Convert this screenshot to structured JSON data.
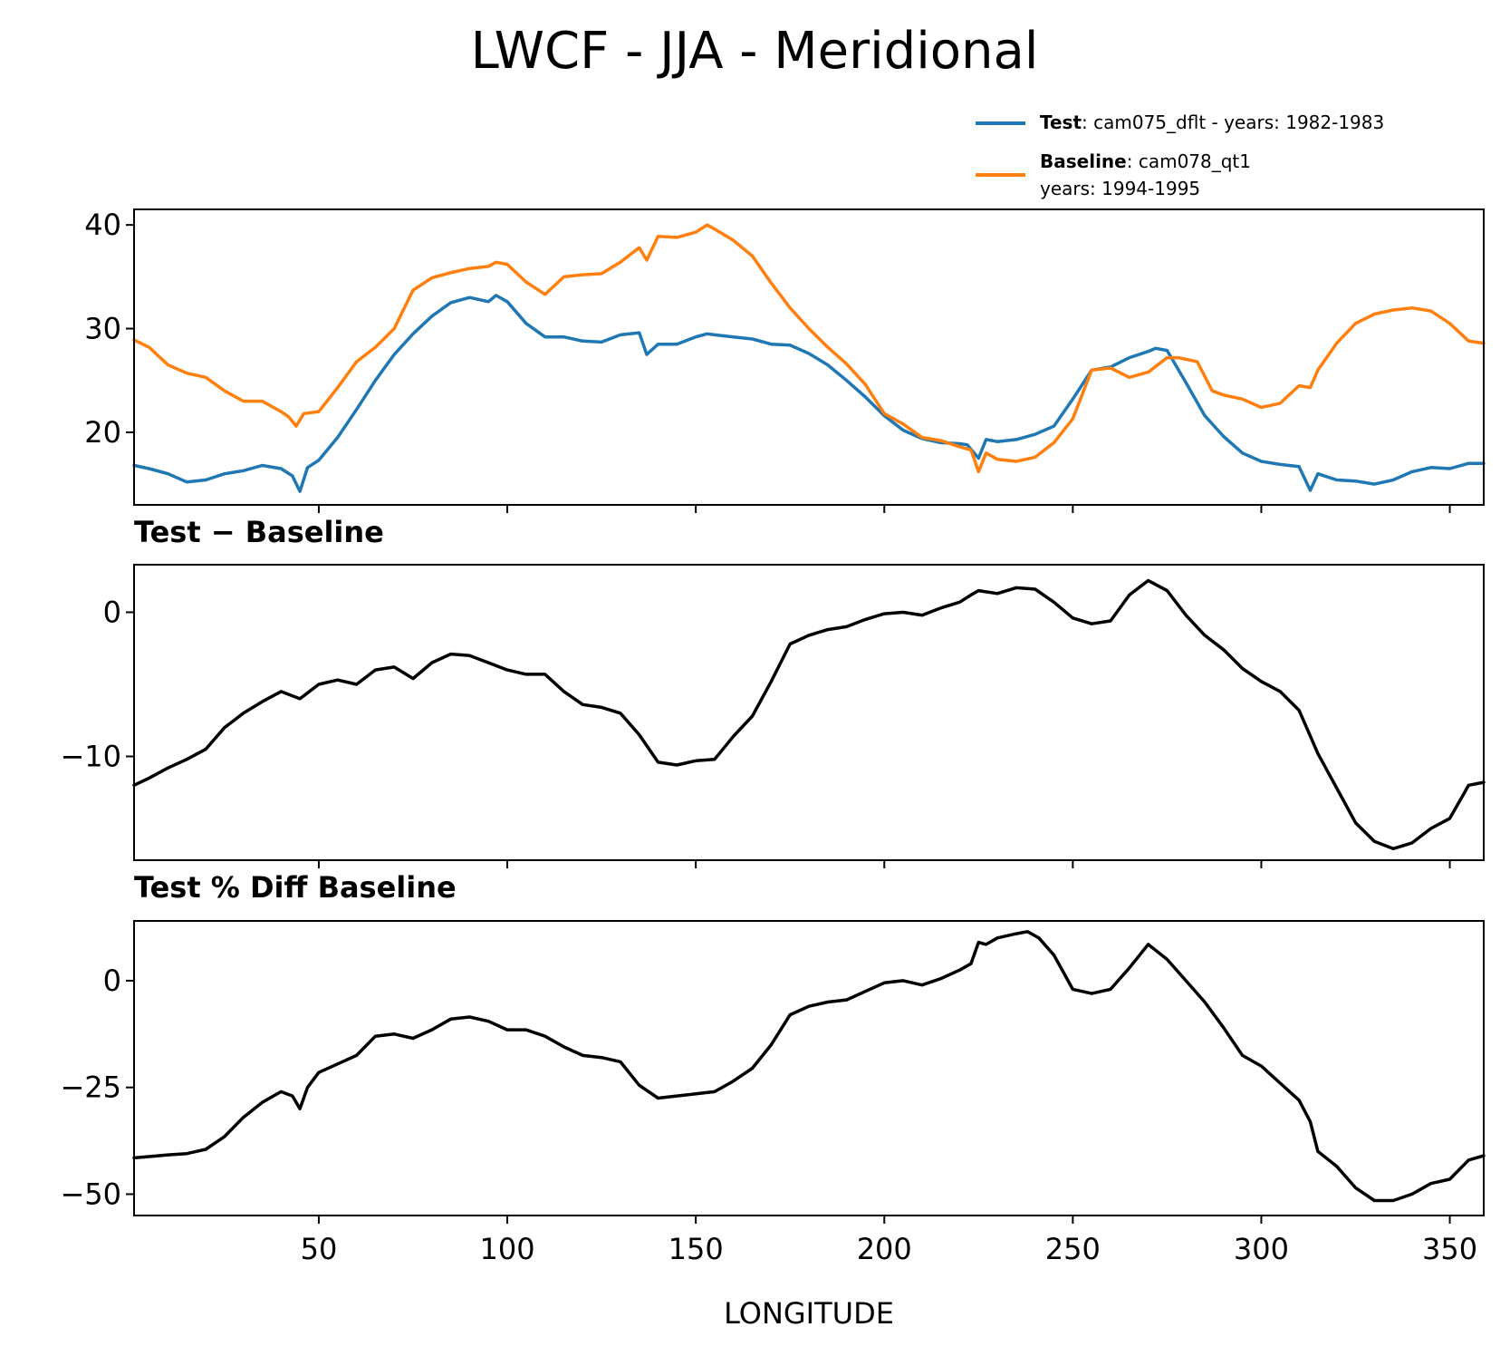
{
  "chart_data": {
    "title": "LWCF - JJA - Meridional",
    "xlabel": "LONGITUDE",
    "xlim": [
      1,
      359
    ],
    "xticks": [
      50,
      100,
      150,
      200,
      250,
      300,
      350
    ],
    "xtick_labels": [
      "50",
      "100",
      "150",
      "200",
      "250",
      "300",
      "350"
    ],
    "legend": {
      "placement": "above top panel, right",
      "entries": [
        {
          "bold": "Test",
          "text": ": cam075_dflt - years: 1982-1983",
          "text2": "",
          "color": "#1f77b4"
        },
        {
          "bold": "Baseline",
          "text": ": cam078_qt1",
          "text2": "years: 1994-1995",
          "color": "#ff7f0e"
        }
      ]
    },
    "panels": [
      {
        "type": "line",
        "subtitle": "",
        "ylim": [
          13,
          41.5
        ],
        "yticks": [
          20,
          30,
          40
        ],
        "ytick_labels": [
          "20",
          "30",
          "40"
        ],
        "series": [
          {
            "name": "Test",
            "color": "#1f77b4",
            "x": [
              1,
              5,
              10,
              15,
              20,
              25,
              30,
              35,
              40,
              43,
              45,
              47,
              50,
              55,
              60,
              65,
              70,
              75,
              80,
              85,
              90,
              95,
              97,
              100,
              105,
              110,
              115,
              120,
              125,
              130,
              135,
              137,
              140,
              145,
              150,
              153,
              155,
              160,
              165,
              170,
              175,
              180,
              185,
              190,
              195,
              200,
              205,
              210,
              215,
              220,
              222,
              225,
              227,
              230,
              235,
              240,
              245,
              250,
              255,
              260,
              265,
              270,
              272,
              275,
              280,
              285,
              290,
              295,
              300,
              305,
              310,
              313,
              315,
              320,
              325,
              330,
              335,
              340,
              345,
              350,
              355,
              359
            ],
            "y": [
              16.8,
              16.5,
              16.0,
              15.2,
              15.4,
              16.0,
              16.3,
              16.8,
              16.5,
              15.8,
              14.3,
              16.6,
              17.3,
              19.5,
              22.2,
              25.0,
              27.5,
              29.5,
              31.2,
              32.5,
              33.0,
              32.6,
              33.2,
              32.6,
              30.5,
              29.2,
              29.2,
              28.8,
              28.7,
              29.4,
              29.6,
              27.5,
              28.5,
              28.5,
              29.2,
              29.5,
              29.4,
              29.2,
              29.0,
              28.5,
              28.4,
              27.6,
              26.5,
              25.0,
              23.4,
              21.6,
              20.2,
              19.4,
              19.0,
              18.9,
              18.8,
              17.5,
              19.3,
              19.1,
              19.3,
              19.8,
              20.6,
              23.2,
              26.0,
              26.3,
              27.2,
              27.8,
              28.1,
              27.9,
              24.8,
              21.6,
              19.6,
              18.0,
              17.2,
              16.9,
              16.7,
              14.4,
              16.0,
              15.4,
              15.3,
              15.0,
              15.4,
              16.2,
              16.6,
              16.5,
              17.0,
              17.0
            ]
          },
          {
            "name": "Baseline",
            "color": "#ff7f0e",
            "x": [
              1,
              5,
              10,
              15,
              20,
              25,
              30,
              35,
              40,
              42,
              44,
              46,
              50,
              55,
              60,
              65,
              70,
              75,
              80,
              85,
              90,
              95,
              97,
              100,
              105,
              110,
              115,
              120,
              125,
              130,
              135,
              137,
              140,
              145,
              150,
              153,
              155,
              160,
              165,
              170,
              175,
              180,
              185,
              190,
              195,
              200,
              205,
              210,
              215,
              220,
              223,
              225,
              227,
              230,
              235,
              240,
              245,
              250,
              255,
              260,
              265,
              270,
              275,
              278,
              283,
              287,
              290,
              295,
              300,
              305,
              310,
              313,
              315,
              320,
              325,
              330,
              335,
              340,
              345,
              350,
              355,
              359
            ],
            "y": [
              28.9,
              28.2,
              26.5,
              25.7,
              25.3,
              24.0,
              23.0,
              23.0,
              22.0,
              21.5,
              20.6,
              21.8,
              22.0,
              24.3,
              26.8,
              28.2,
              30.0,
              33.7,
              34.9,
              35.4,
              35.8,
              36.0,
              36.4,
              36.2,
              34.5,
              33.3,
              35.0,
              35.2,
              35.3,
              36.4,
              37.8,
              36.6,
              38.9,
              38.8,
              39.3,
              40.0,
              39.6,
              38.5,
              37.0,
              34.4,
              32.0,
              30.0,
              28.2,
              26.6,
              24.6,
              21.8,
              20.8,
              19.5,
              19.2,
              18.6,
              18.3,
              16.2,
              18.0,
              17.4,
              17.2,
              17.6,
              19.0,
              21.3,
              26.0,
              26.2,
              25.3,
              25.8,
              27.2,
              27.2,
              26.8,
              24.0,
              23.6,
              23.2,
              22.4,
              22.8,
              24.5,
              24.3,
              26.0,
              28.6,
              30.5,
              31.4,
              31.8,
              32.0,
              31.7,
              30.5,
              28.8,
              28.6
            ]
          }
        ]
      },
      {
        "type": "line",
        "subtitle": "Test − Baseline",
        "ylim": [
          -17.2,
          3.3
        ],
        "yticks": [
          -10,
          0
        ],
        "ytick_labels": [
          "−10",
          "0"
        ],
        "series": [
          {
            "name": "",
            "color": "#000000",
            "x": [
              1,
              5,
              10,
              15,
              20,
              25,
              30,
              35,
              40,
              45,
              50,
              55,
              60,
              65,
              70,
              75,
              80,
              85,
              90,
              95,
              100,
              105,
              110,
              115,
              120,
              125,
              130,
              135,
              140,
              145,
              150,
              155,
              160,
              165,
              170,
              175,
              180,
              185,
              190,
              195,
              200,
              205,
              210,
              215,
              220,
              223,
              225,
              230,
              235,
              240,
              245,
              250,
              255,
              260,
              265,
              270,
              275,
              280,
              285,
              290,
              295,
              300,
              305,
              310,
              315,
              320,
              325,
              330,
              335,
              340,
              345,
              350,
              355,
              359
            ],
            "y": [
              -12.0,
              -11.5,
              -10.8,
              -10.2,
              -9.5,
              -8.0,
              -7.0,
              -6.2,
              -5.5,
              -6.0,
              -5.0,
              -4.7,
              -5.0,
              -4.0,
              -3.8,
              -4.6,
              -3.5,
              -2.9,
              -3.0,
              -3.5,
              -4.0,
              -4.3,
              -4.3,
              -5.5,
              -6.4,
              -6.6,
              -7.0,
              -8.5,
              -10.4,
              -10.6,
              -10.3,
              -10.2,
              -8.6,
              -7.2,
              -4.8,
              -2.2,
              -1.6,
              -1.2,
              -1.0,
              -0.5,
              -0.1,
              0.0,
              -0.2,
              0.3,
              0.7,
              1.2,
              1.5,
              1.3,
              1.7,
              1.6,
              0.7,
              -0.4,
              -0.8,
              -0.6,
              1.2,
              2.2,
              1.5,
              -0.2,
              -1.6,
              -2.6,
              -3.9,
              -4.8,
              -5.5,
              -6.8,
              -9.8,
              -12.2,
              -14.6,
              -15.9,
              -16.4,
              -16.0,
              -15.0,
              -14.3,
              -12.0,
              -11.8
            ]
          }
        ]
      },
      {
        "type": "line",
        "subtitle": "Test % Diff Baseline",
        "ylim": [
          -55,
          14
        ],
        "yticks": [
          -50,
          -25,
          0
        ],
        "ytick_labels": [
          "−50",
          "−25",
          "0"
        ],
        "series": [
          {
            "name": "",
            "color": "#000000",
            "x": [
              1,
              5,
              10,
              15,
              20,
              25,
              30,
              35,
              40,
              43,
              45,
              47,
              50,
              55,
              60,
              65,
              70,
              75,
              80,
              85,
              90,
              95,
              100,
              105,
              110,
              115,
              120,
              125,
              130,
              135,
              140,
              145,
              150,
              155,
              160,
              165,
              170,
              175,
              180,
              185,
              190,
              195,
              200,
              205,
              210,
              215,
              220,
              223,
              225,
              227,
              230,
              235,
              238,
              241,
              245,
              250,
              255,
              260,
              265,
              270,
              275,
              280,
              285,
              290,
              295,
              300,
              305,
              310,
              313,
              315,
              320,
              325,
              330,
              335,
              340,
              345,
              350,
              355,
              359
            ],
            "y": [
              -41.5,
              -41.2,
              -40.8,
              -40.5,
              -39.5,
              -36.5,
              -32.0,
              -28.5,
              -26.0,
              -27.0,
              -30.0,
              -25.0,
              -21.5,
              -19.5,
              -17.5,
              -13.0,
              -12.5,
              -13.5,
              -11.5,
              -9.0,
              -8.5,
              -9.5,
              -11.5,
              -11.5,
              -13.0,
              -15.5,
              -17.5,
              -18.0,
              -19.0,
              -24.5,
              -27.5,
              -27.0,
              -26.5,
              -26.0,
              -23.5,
              -20.5,
              -15.0,
              -8.0,
              -6.0,
              -5.0,
              -4.5,
              -2.5,
              -0.5,
              0.0,
              -1.0,
              0.5,
              2.5,
              4.0,
              9.0,
              8.5,
              10.0,
              11.0,
              11.5,
              10.0,
              6.0,
              -2.0,
              -3.0,
              -2.0,
              3.0,
              8.5,
              5.0,
              0.0,
              -5.0,
              -11.0,
              -17.5,
              -20.0,
              -24.0,
              -28.0,
              -33.0,
              -40.0,
              -43.5,
              -48.5,
              -51.5,
              -51.5,
              -50.0,
              -47.5,
              -46.5,
              -42.0,
              -41.0
            ]
          }
        ]
      }
    ]
  }
}
